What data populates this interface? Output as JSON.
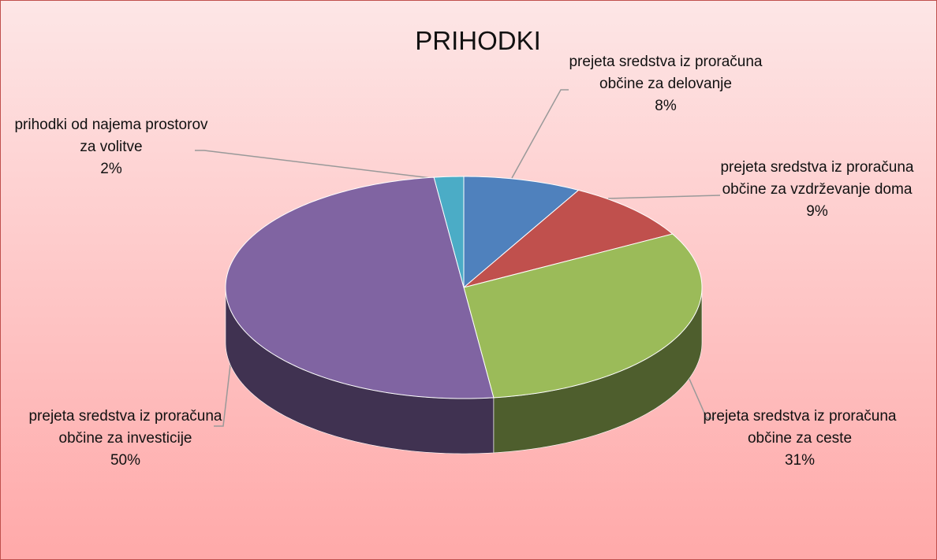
{
  "chart_data": {
    "type": "pie",
    "title": "PRIHODKI",
    "categories": [
      "prejeta sredstva iz proračuna občine za delovanje",
      "prejeta sredstva iz proračuna občine za vzdrževanje doma",
      "prejeta sredstva iz proračuna občine za ceste",
      "prejeta sredstva iz proračuna občine za investicije",
      "prihodki od najema prostorov za volitve"
    ],
    "values": [
      8,
      9,
      31,
      50,
      2
    ],
    "value_labels": [
      "8%",
      "9%",
      "31%",
      "50%",
      "2%"
    ],
    "colors": [
      "#4f81bd",
      "#c0504d",
      "#9bbb59",
      "#8064a2",
      "#4bacc6"
    ]
  }
}
